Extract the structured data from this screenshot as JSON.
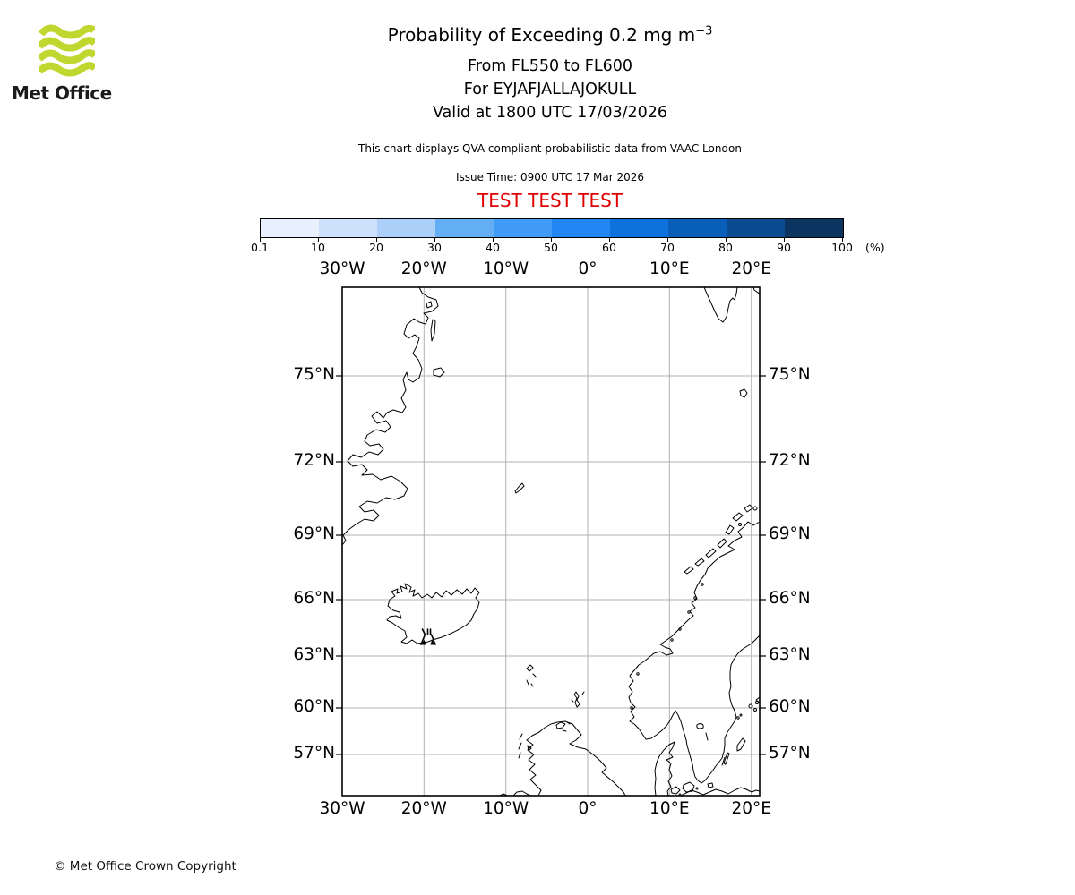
{
  "brand": {
    "logo_text": "Met Office",
    "logo_color": "#bfd72f"
  },
  "titles": {
    "main_prefix": "Probability of Exceeding 0.2 mg m",
    "main_exponent": "−3",
    "subtitle1": "From FL550 to FL600",
    "subtitle2": "For EYJAFJALLAJOKULL",
    "subtitle3": "Valid at 1800 UTC 17/03/2026"
  },
  "notes": {
    "compliance": "This chart displays QVA compliant probabilistic data from VAAC London",
    "issue_time": "Issue Time: 0900 UTC 17 Mar 2026",
    "test_banner": "TEST TEST TEST",
    "test_color": "#e00000"
  },
  "colorbar": {
    "unit_label": "(%)",
    "tick_labels": [
      "0.1",
      "10",
      "20",
      "30",
      "40",
      "50",
      "60",
      "70",
      "80",
      "90",
      "100"
    ],
    "segment_colors": [
      "#e7f0fc",
      "#cde2fa",
      "#abcff8",
      "#64aef6",
      "#3f9bf5",
      "#2187f2",
      "#0e72dc",
      "#085eb8",
      "#0a4a8f",
      "#0b3560"
    ]
  },
  "map": {
    "grid_color": "#b0b0b0",
    "coast_color": "#000000",
    "lon_labels": [
      "30°W",
      "20°W",
      "10°W",
      "0°",
      "10°E",
      "20°E"
    ],
    "lat_labels": [
      "75°N",
      "72°N",
      "69°N",
      "66°N",
      "63°N",
      "60°N",
      "57°N"
    ]
  },
  "footer": {
    "copyright": "© Met Office Crown Copyright"
  },
  "chart_data": {
    "type": "map",
    "title": "Probability of Exceeding 0.2 mg m^-3",
    "flight_level_range": "FL550 to FL600",
    "volcano": "EYJAFJALLAJOKULL",
    "volcano_location": {
      "lon": -19.6,
      "lat": 63.6
    },
    "valid_time": "1800 UTC 17/03/2026",
    "issue_time": "0900 UTC 17 Mar 2026",
    "source": "VAAC London",
    "compliance": "QVA compliant probabilistic data",
    "test_status": "TEST TEST TEST",
    "projection": "Mercator",
    "extent": {
      "lon_min": -30,
      "lon_max": 21,
      "lat_min": 54.1,
      "lat_max": 77.6
    },
    "lon_gridlines_deg": [
      -30,
      -20,
      -10,
      0,
      10,
      20
    ],
    "lat_gridlines_deg": [
      75,
      72,
      69,
      66,
      63,
      60,
      57
    ],
    "probability_scale_percent": [
      0.1,
      10,
      20,
      30,
      40,
      50,
      60,
      70,
      80,
      90,
      100
    ],
    "exceedance_regions": [],
    "legend_position": "top",
    "grid": true
  }
}
